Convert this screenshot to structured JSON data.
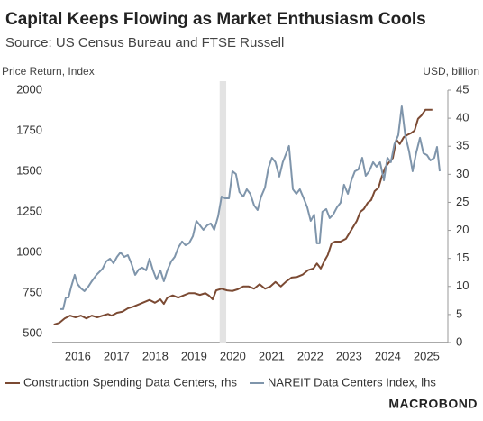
{
  "chart_data": {
    "type": "line",
    "title": "Capital Keeps Flowing as Market Enthusiasm Cools",
    "subtitle": "Source: US Census Bureau and FTSE Russell",
    "y_axis_label": "Price Return, Index",
    "y2_axis_label": "USD, billion",
    "branding": "MACROBOND",
    "xlim": [
      2015.84,
      2026.05
    ],
    "xticks": [
      {
        "value": 2016.5,
        "label": "2016"
      },
      {
        "value": 2017.5,
        "label": "2017"
      },
      {
        "value": 2018.5,
        "label": "2018"
      },
      {
        "value": 2019.5,
        "label": "2019"
      },
      {
        "value": 2020.5,
        "label": "2020"
      },
      {
        "value": 2021.5,
        "label": "2021"
      },
      {
        "value": 2022.5,
        "label": "2022"
      },
      {
        "value": 2023.5,
        "label": "2023"
      },
      {
        "value": 2024.5,
        "label": "2024"
      },
      {
        "value": 2025.5,
        "label": "2025"
      }
    ],
    "ylim": [
      444,
      2000
    ],
    "yticks": [
      500,
      750,
      1000,
      1250,
      1500,
      1750,
      2000
    ],
    "y2lim": [
      0,
      45
    ],
    "y2ticks": [
      0,
      5,
      10,
      15,
      20,
      25,
      30,
      35,
      40,
      45
    ],
    "grid": false,
    "shaded_band": [
      2020.16,
      2020.33
    ],
    "series": [
      {
        "name": "Construction Spending Data Centers, rhs",
        "color": "#7b4a33",
        "axis": "y2",
        "x": [
          2015.88,
          2016.02,
          2016.16,
          2016.3,
          2016.44,
          2016.58,
          2016.72,
          2016.86,
          2017.0,
          2017.14,
          2017.28,
          2017.37,
          2017.51,
          2017.65,
          2017.79,
          2017.93,
          2018.07,
          2018.21,
          2018.35,
          2018.49,
          2018.63,
          2018.72,
          2018.81,
          2018.95,
          2019.09,
          2019.23,
          2019.37,
          2019.51,
          2019.65,
          2019.79,
          2019.88,
          2019.98,
          2020.07,
          2020.21,
          2020.35,
          2020.49,
          2020.63,
          2020.77,
          2020.91,
          2021.05,
          2021.19,
          2021.33,
          2021.47,
          2021.6,
          2021.74,
          2021.88,
          2022.02,
          2022.16,
          2022.3,
          2022.44,
          2022.58,
          2022.67,
          2022.77,
          2022.86,
          2022.95,
          2023.05,
          2023.14,
          2023.28,
          2023.42,
          2023.56,
          2023.7,
          2023.79,
          2023.88,
          2023.98,
          2024.07,
          2024.16,
          2024.26,
          2024.35,
          2024.44,
          2024.53,
          2024.63,
          2024.72,
          2024.81,
          2024.91,
          2025.0,
          2025.09,
          2025.19,
          2025.28,
          2025.37,
          2025.47,
          2025.56,
          2025.65
        ],
        "values": [
          3.2,
          3.5,
          4.3,
          4.8,
          4.5,
          4.8,
          4.3,
          4.8,
          4.5,
          4.8,
          5.1,
          4.8,
          5.3,
          5.5,
          6.1,
          6.4,
          6.8,
          7.2,
          7.6,
          7.1,
          7.7,
          6.9,
          8.0,
          8.4,
          8.0,
          8.4,
          8.8,
          8.8,
          8.5,
          8.8,
          8.4,
          7.7,
          9.3,
          9.6,
          9.3,
          9.2,
          9.5,
          10.0,
          10.0,
          9.6,
          10.4,
          9.6,
          10.0,
          10.8,
          10.0,
          10.9,
          11.6,
          11.7,
          12.1,
          12.9,
          13.2,
          14.1,
          13.2,
          14.5,
          15.6,
          17.7,
          18.0,
          18.0,
          18.5,
          20.1,
          21.7,
          23.3,
          23.8,
          24.9,
          25.4,
          27.0,
          27.6,
          29.7,
          31.3,
          32.1,
          32.9,
          36.2,
          35.4,
          36.6,
          37.0,
          37.3,
          37.8,
          39.9,
          40.5,
          41.5,
          41.5,
          41.5
        ]
      },
      {
        "name": "NAREIT Data Centers Index, lhs",
        "color": "#7f95ab",
        "axis": "y",
        "x": [
          2016.05,
          2016.12,
          2016.19,
          2016.26,
          2016.33,
          2016.42,
          2016.49,
          2016.58,
          2016.67,
          2016.77,
          2016.86,
          2016.98,
          2017.05,
          2017.14,
          2017.23,
          2017.33,
          2017.42,
          2017.51,
          2017.6,
          2017.7,
          2017.79,
          2017.88,
          2017.98,
          2018.07,
          2018.16,
          2018.26,
          2018.35,
          2018.44,
          2018.53,
          2018.63,
          2018.72,
          2018.81,
          2018.91,
          2019.0,
          2019.09,
          2019.19,
          2019.28,
          2019.37,
          2019.47,
          2019.56,
          2019.65,
          2019.74,
          2019.84,
          2019.93,
          2020.02,
          2020.12,
          2020.21,
          2020.3,
          2020.4,
          2020.49,
          2020.58,
          2020.67,
          2020.77,
          2020.86,
          2020.95,
          2021.05,
          2021.14,
          2021.23,
          2021.33,
          2021.42,
          2021.51,
          2021.6,
          2021.7,
          2021.79,
          2021.88,
          2021.95,
          2022.05,
          2022.14,
          2022.23,
          2022.33,
          2022.42,
          2022.51,
          2022.6,
          2022.67,
          2022.74,
          2022.81,
          2022.91,
          2023.0,
          2023.09,
          2023.19,
          2023.28,
          2023.37,
          2023.47,
          2023.56,
          2023.65,
          2023.74,
          2023.84,
          2023.93,
          2024.02,
          2024.12,
          2024.21,
          2024.3,
          2024.4,
          2024.49,
          2024.58,
          2024.67,
          2024.77,
          2024.86,
          2024.95,
          2025.05,
          2025.14,
          2025.23,
          2025.33,
          2025.42,
          2025.51,
          2025.6,
          2025.7,
          2025.77,
          2025.84
        ],
        "values": [
          650,
          650,
          722,
          722,
          789,
          861,
          806,
          778,
          761,
          789,
          822,
          861,
          878,
          900,
          944,
          961,
          933,
          972,
          1000,
          972,
          983,
          933,
          861,
          894,
          906,
          889,
          961,
          889,
          833,
          889,
          822,
          889,
          944,
          972,
          1028,
          1067,
          1044,
          1056,
          1100,
          1194,
          1167,
          1139,
          1167,
          1178,
          1139,
          1222,
          1344,
          1333,
          1333,
          1500,
          1483,
          1372,
          1344,
          1389,
          1361,
          1289,
          1261,
          1344,
          1400,
          1522,
          1583,
          1556,
          1467,
          1556,
          1611,
          1656,
          1389,
          1361,
          1389,
          1333,
          1278,
          1194,
          1233,
          1056,
          1056,
          1250,
          1267,
          1211,
          1233,
          1278,
          1306,
          1417,
          1361,
          1444,
          1500,
          1511,
          1583,
          1472,
          1500,
          1556,
          1528,
          1556,
          1444,
          1583,
          1556,
          1667,
          1722,
          1900,
          1722,
          1622,
          1500,
          1611,
          1706,
          1611,
          1600,
          1567,
          1583,
          1650,
          1500
        ]
      }
    ]
  }
}
